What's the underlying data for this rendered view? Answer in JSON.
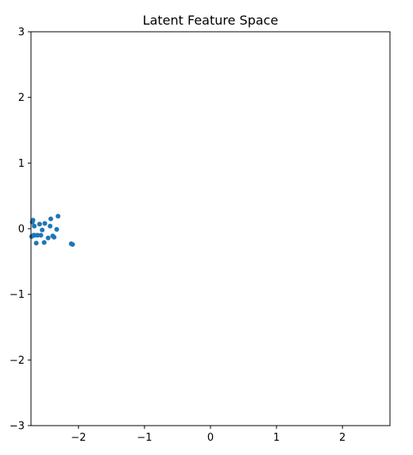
{
  "chart_data": {
    "type": "scatter",
    "title": "Latent Feature Space",
    "xlabel": "",
    "ylabel": "",
    "xlim": [
      -2.72,
      2.72
    ],
    "ylim": [
      -3,
      3
    ],
    "xticks": [
      -2,
      -1,
      0,
      1,
      2
    ],
    "yticks": [
      -3,
      -2,
      -1,
      0,
      1,
      2,
      3
    ],
    "xtick_labels": [
      "−2",
      "−1",
      "0",
      "1",
      "2"
    ],
    "ytick_labels": [
      "−3",
      "−2",
      "−1",
      "0",
      "1",
      "2",
      "3"
    ],
    "grid": false,
    "point_color": "#1f77b4",
    "points": [
      {
        "x": -2.71,
        "y": -0.12
      },
      {
        "x": -2.7,
        "y": 0.1
      },
      {
        "x": -2.69,
        "y": 0.13
      },
      {
        "x": -2.68,
        "y": -0.1
      },
      {
        "x": -2.67,
        "y": 0.04
      },
      {
        "x": -2.66,
        "y": -0.1
      },
      {
        "x": -2.64,
        "y": -0.22
      },
      {
        "x": -2.62,
        "y": -0.1
      },
      {
        "x": -2.59,
        "y": 0.07
      },
      {
        "x": -2.57,
        "y": -0.1
      },
      {
        "x": -2.55,
        "y": -0.02
      },
      {
        "x": -2.52,
        "y": -0.21
      },
      {
        "x": -2.51,
        "y": 0.08
      },
      {
        "x": -2.46,
        "y": -0.14
      },
      {
        "x": -2.43,
        "y": 0.04
      },
      {
        "x": -2.42,
        "y": 0.15
      },
      {
        "x": -2.39,
        "y": -0.11
      },
      {
        "x": -2.37,
        "y": -0.13
      },
      {
        "x": -2.33,
        "y": -0.01
      },
      {
        "x": -2.31,
        "y": 0.19
      },
      {
        "x": -2.11,
        "y": -0.23
      },
      {
        "x": -2.09,
        "y": -0.24
      }
    ]
  }
}
